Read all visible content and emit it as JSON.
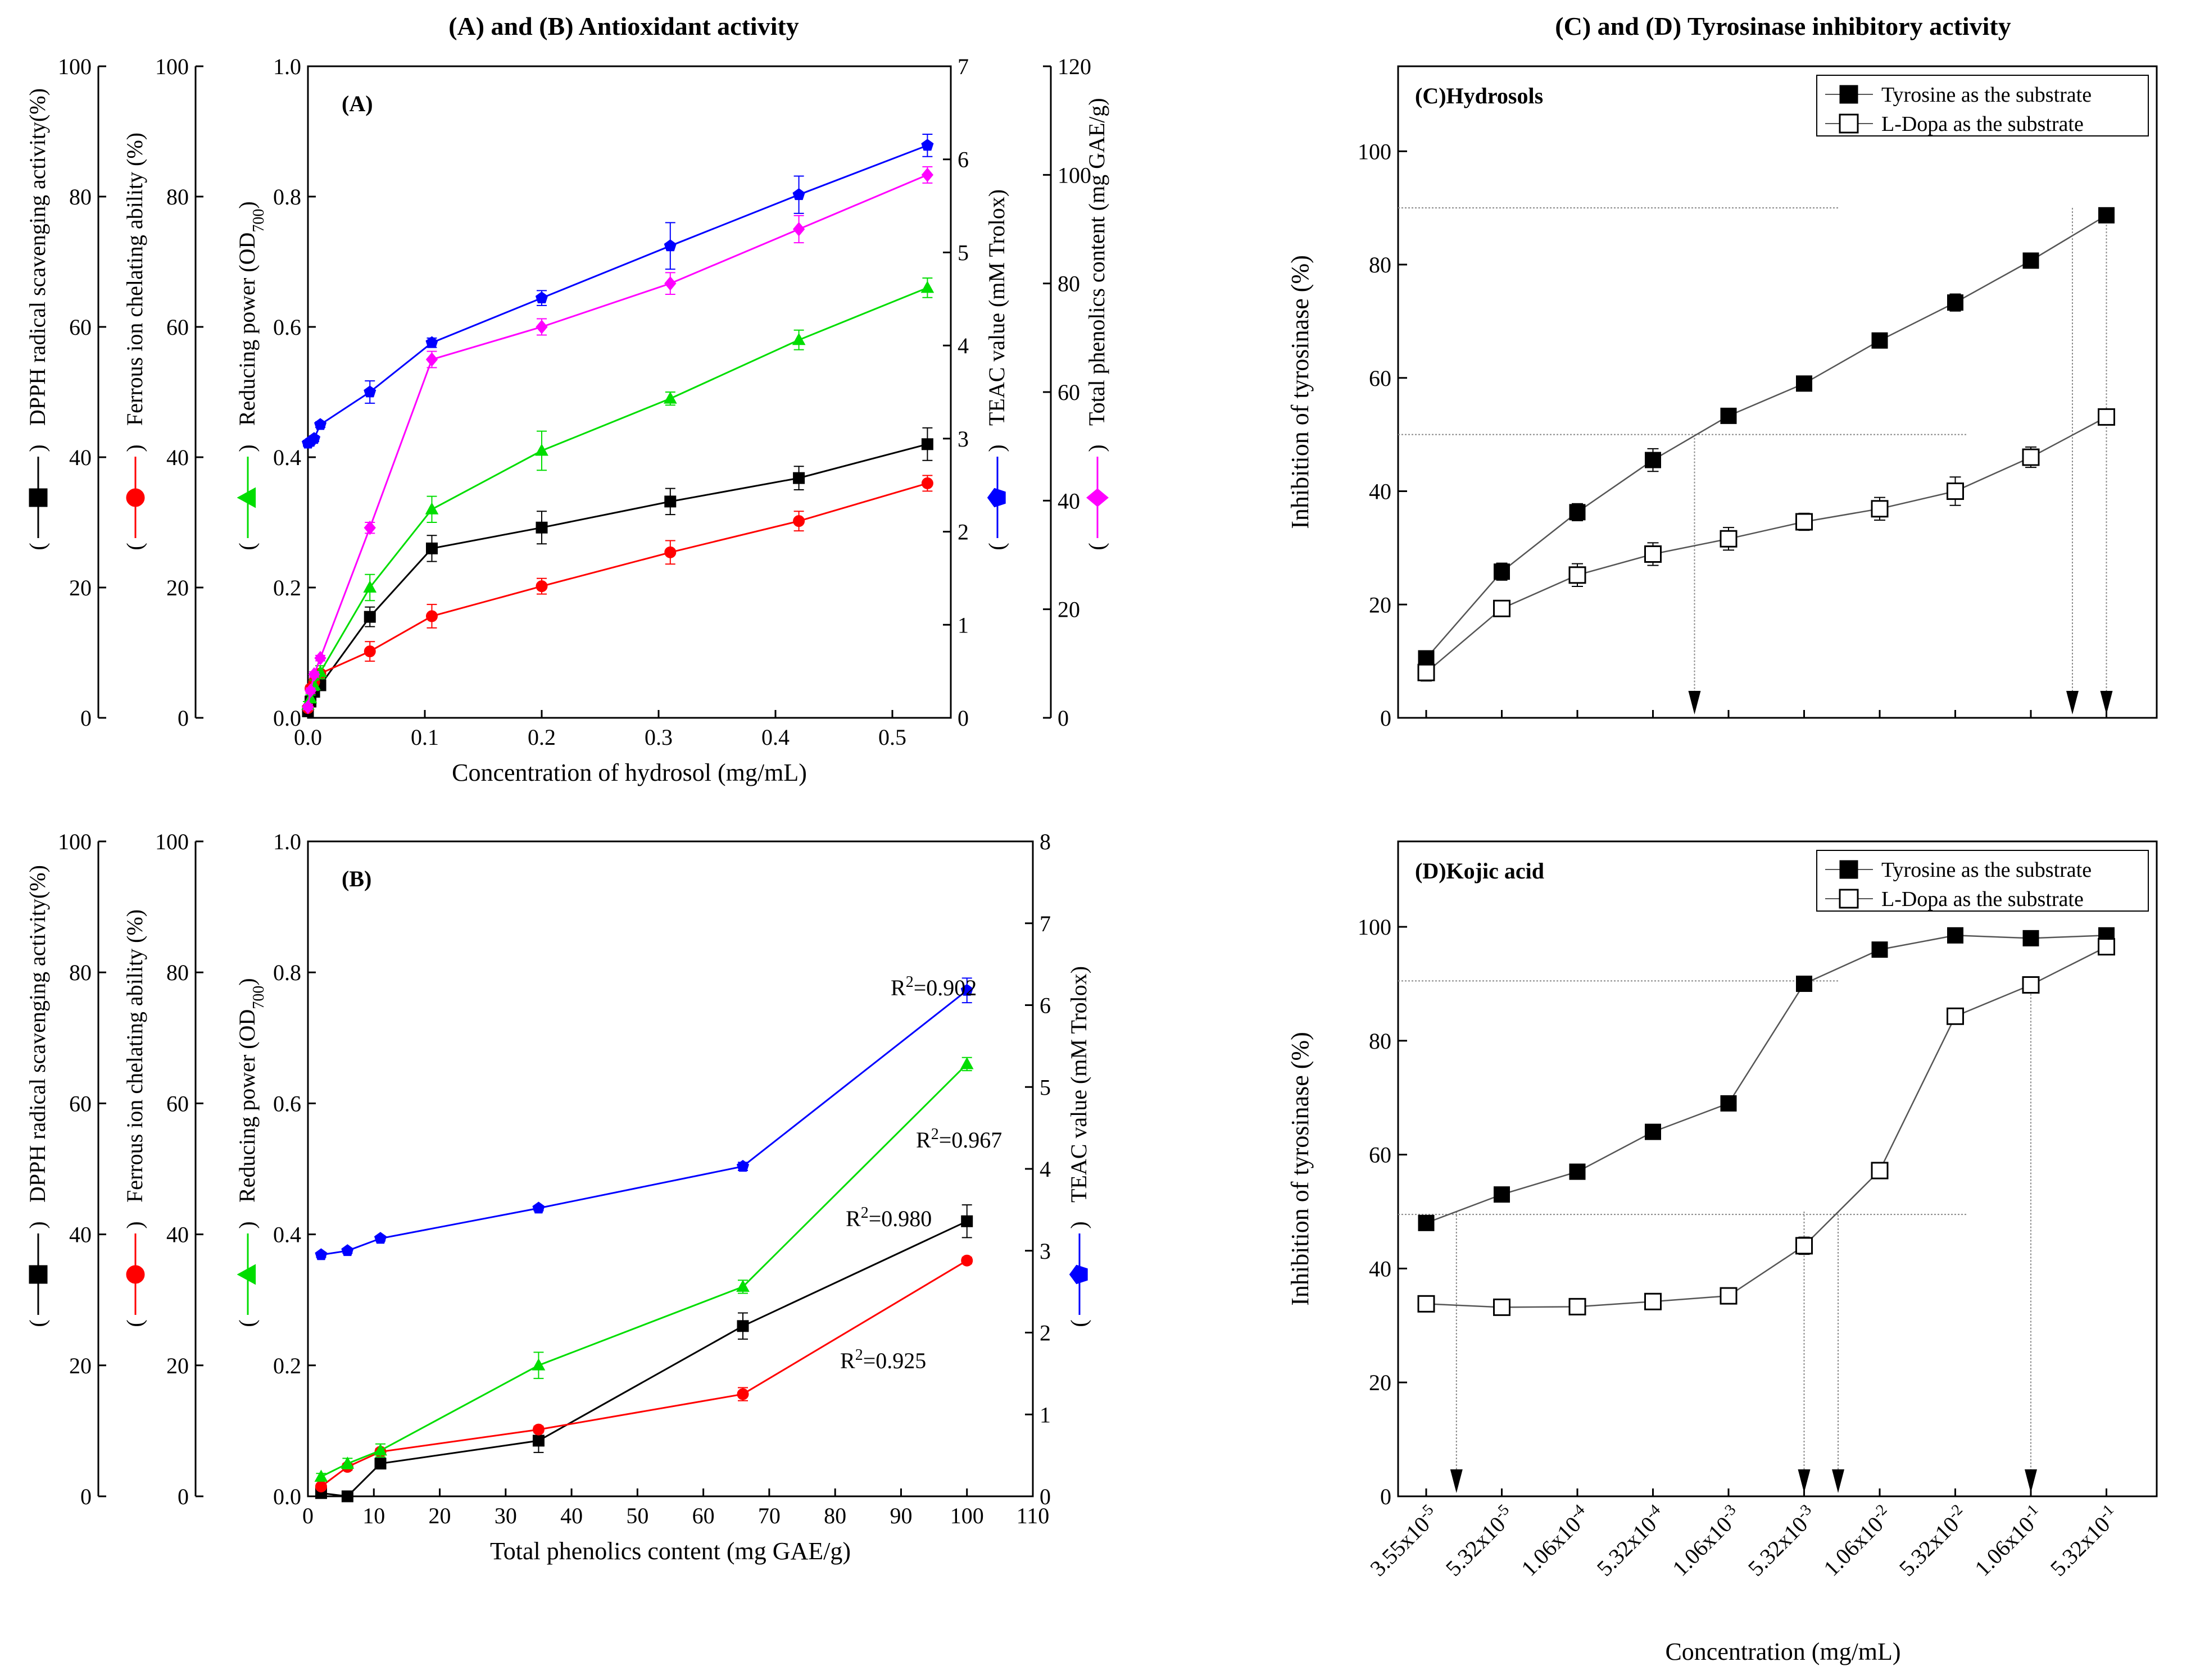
{
  "titles": {
    "left": "(A) and (B) Antioxidant activity",
    "right": "(C) and (D) Tyrosinase inhibitory activity"
  },
  "colors": {
    "dpph": "#000000",
    "ferrous": "#ff0000",
    "reducing": "#00dd00",
    "teac": "#0000ff",
    "phenolics": "#ff00ff",
    "tyrosine": "#000000",
    "ldopa": "#555555"
  },
  "chart_data": [
    {
      "id": "A",
      "type": "line",
      "panel_label": "(A)",
      "xlabel": "Concentration of hydrosol (mg/mL)",
      "xlim": [
        0,
        0.55
      ],
      "xticks": [
        0.0,
        0.1,
        0.2,
        0.3,
        0.4,
        0.5
      ],
      "xtick_labels": [
        "0.0",
        "0.1",
        "0.2",
        "0.3",
        "0.4",
        "0.5"
      ],
      "axes": [
        {
          "id": "dpph",
          "label": "DPPH radical scavenging activity(%)",
          "lim": [
            0,
            100
          ],
          "ticks": [
            "0",
            "20",
            "40",
            "60",
            "80",
            "100"
          ],
          "marker": "square"
        },
        {
          "id": "ferrous",
          "label": "Ferrous ion chelating ability (%)",
          "lim": [
            0,
            100
          ],
          "ticks": [
            "0",
            "20",
            "40",
            "60",
            "80",
            "100"
          ],
          "marker": "circle"
        },
        {
          "id": "reducing",
          "label": "Reducing power (OD",
          "label_sub": "700",
          "lim": [
            0,
            1.0
          ],
          "ticks": [
            "0.0",
            "0.2",
            "0.4",
            "0.6",
            "0.8",
            "1.0"
          ],
          "marker": "triangle"
        },
        {
          "id": "teac",
          "label": "TEAC value (mM Trolox)",
          "lim": [
            0,
            7
          ],
          "ticks": [
            "0",
            "1",
            "2",
            "3",
            "4",
            "5",
            "6",
            "7"
          ],
          "marker": "pentagon"
        },
        {
          "id": "phenolics",
          "label": "Total phenolics content (mg GAE/g)",
          "lim": [
            0,
            120
          ],
          "ticks": [
            "0",
            "20",
            "40",
            "60",
            "80",
            "100",
            "120"
          ],
          "marker": "diamond"
        }
      ],
      "series": [
        {
          "name": "DPPH radical scavenging activity",
          "axis": "dpph",
          "color": "#000000",
          "marker": "square",
          "x": [
            0.0,
            0.0022,
            0.0053,
            0.0106,
            0.053,
            0.106,
            0.2,
            0.31,
            0.42,
            0.53
          ],
          "y": [
            1.0,
            2.5,
            4.0,
            5.0,
            15.5,
            26.0,
            29.2,
            33.2,
            36.8,
            42.0
          ],
          "err": [
            0.3,
            0.5,
            0.5,
            0.8,
            1.5,
            2.0,
            2.5,
            2.0,
            1.8,
            2.5
          ]
        },
        {
          "name": "Ferrous ion chelating ability",
          "axis": "ferrous",
          "color": "#ff0000",
          "marker": "circle",
          "x": [
            0.0,
            0.0022,
            0.0053,
            0.0106,
            0.053,
            0.106,
            0.2,
            0.31,
            0.42,
            0.53
          ],
          "y": [
            1.5,
            4.5,
            5.5,
            6.8,
            10.2,
            15.6,
            20.2,
            25.4,
            30.2,
            36.0
          ],
          "err": [
            0.3,
            0.5,
            0.5,
            0.5,
            1.5,
            1.8,
            1.2,
            1.8,
            1.5,
            1.2
          ]
        },
        {
          "name": "Reducing power",
          "axis": "reducing",
          "color": "#00dd00",
          "marker": "triangle",
          "x": [
            0.0,
            0.0022,
            0.0053,
            0.0106,
            0.053,
            0.106,
            0.2,
            0.31,
            0.42,
            0.53
          ],
          "y": [
            0.02,
            0.03,
            0.05,
            0.07,
            0.2,
            0.32,
            0.41,
            0.49,
            0.58,
            0.66
          ],
          "err": [
            0.005,
            0.005,
            0.008,
            0.01,
            0.02,
            0.02,
            0.03,
            0.01,
            0.015,
            0.015
          ]
        },
        {
          "name": "TEAC value",
          "axis": "teac",
          "color": "#0000ff",
          "marker": "pentagon",
          "x": [
            0.0,
            0.0022,
            0.0053,
            0.0106,
            0.053,
            0.106,
            0.2,
            0.31,
            0.42,
            0.53
          ],
          "y": [
            2.95,
            2.97,
            3.0,
            3.15,
            3.5,
            4.03,
            4.51,
            5.07,
            5.62,
            6.15
          ],
          "err": [
            0.03,
            0.03,
            0.03,
            0.03,
            0.12,
            0.05,
            0.08,
            0.25,
            0.2,
            0.12
          ]
        },
        {
          "name": "Total phenolics content",
          "axis": "phenolics",
          "color": "#ff00ff",
          "marker": "diamond",
          "x": [
            0.0,
            0.0022,
            0.0053,
            0.0106,
            0.053,
            0.106,
            0.2,
            0.31,
            0.42,
            0.53
          ],
          "y": [
            2,
            5,
            8,
            11,
            35,
            66,
            72,
            80,
            90,
            100
          ],
          "err": [
            0.5,
            0.5,
            0.5,
            0.5,
            1.0,
            1.5,
            1.5,
            2.0,
            2.5,
            1.5
          ]
        }
      ]
    },
    {
      "id": "B",
      "type": "line",
      "panel_label": "(B)",
      "xlabel": "Total phenolics content (mg GAE/g)",
      "xlim": [
        0,
        110
      ],
      "xticks": [
        0,
        10,
        20,
        30,
        40,
        50,
        60,
        70,
        80,
        90,
        100,
        110
      ],
      "xtick_labels": [
        "0",
        "10",
        "20",
        "30",
        "40",
        "50",
        "60",
        "70",
        "80",
        "90",
        "100",
        "110"
      ],
      "axes": [
        {
          "id": "dpph",
          "label": "DPPH radical scavenging activity(%)",
          "lim": [
            0,
            100
          ],
          "ticks": [
            "0",
            "20",
            "40",
            "60",
            "80",
            "100"
          ],
          "marker": "square"
        },
        {
          "id": "ferrous",
          "label": "Ferrous ion chelating ability (%)",
          "lim": [
            0,
            100
          ],
          "ticks": [
            "0",
            "20",
            "40",
            "60",
            "80",
            "100"
          ],
          "marker": "circle"
        },
        {
          "id": "reducing",
          "label": "Reducing power (OD",
          "label_sub": "700",
          "lim": [
            0,
            1.0
          ],
          "ticks": [
            "0.0",
            "0.2",
            "0.4",
            "0.6",
            "0.8",
            "1.0"
          ],
          "marker": "triangle"
        },
        {
          "id": "teac",
          "label": "TEAC value (mM Trolox)",
          "lim": [
            0,
            8
          ],
          "ticks": [
            "0",
            "1",
            "2",
            "3",
            "4",
            "5",
            "6",
            "7",
            "8"
          ],
          "marker": "pentagon"
        }
      ],
      "series": [
        {
          "name": "DPPH radical scavenging activity",
          "axis": "dpph",
          "color": "#000000",
          "marker": "square",
          "x": [
            2,
            6,
            11,
            35,
            66,
            100
          ],
          "y": [
            0.5,
            0,
            5,
            8.5,
            26,
            42
          ],
          "err": [
            0.3,
            0.3,
            0.8,
            1.8,
            2.0,
            2.5
          ]
        },
        {
          "name": "Ferrous ion chelating ability",
          "axis": "ferrous",
          "color": "#ff0000",
          "marker": "circle",
          "x": [
            2,
            6,
            11,
            35,
            66,
            100
          ],
          "y": [
            1.5,
            4.5,
            6.8,
            10.2,
            15.6,
            36
          ],
          "err": [
            0.3,
            0.5,
            0.5,
            0.5,
            1.0,
            0.5
          ]
        },
        {
          "name": "Reducing power",
          "axis": "reducing",
          "color": "#00dd00",
          "marker": "triangle",
          "x": [
            2,
            6,
            11,
            35,
            66,
            100
          ],
          "y": [
            0.03,
            0.05,
            0.07,
            0.2,
            0.32,
            0.66
          ],
          "err": [
            0.005,
            0.008,
            0.01,
            0.02,
            0.01,
            0.01
          ]
        },
        {
          "name": "TEAC value",
          "axis": "teac",
          "color": "#0000ff",
          "marker": "pentagon",
          "x": [
            2,
            6,
            11,
            35,
            66,
            100
          ],
          "y": [
            2.95,
            3.0,
            3.15,
            3.52,
            4.03,
            6.18
          ],
          "err": [
            0.03,
            0.03,
            0.03,
            0.03,
            0.05,
            0.15
          ]
        }
      ],
      "annotations": [
        {
          "text": "R",
          "sup": "2",
          "value": "=0.902",
          "series": "TEAC value"
        },
        {
          "text": "R",
          "sup": "2",
          "value": "=0.967",
          "series": "Reducing power"
        },
        {
          "text": "R",
          "sup": "2",
          "value": "=0.980",
          "series": "DPPH radical scavenging activity"
        },
        {
          "text": "R",
          "sup": "2",
          "value": "=0.925",
          "series": "Ferrous ion chelating ability"
        }
      ]
    },
    {
      "id": "C",
      "type": "line",
      "panel_label": "(C)Hydrosols",
      "ylabel": "Inhibition of tyrosinase (%)",
      "ylim": [
        0,
        115
      ],
      "yticks": [
        0,
        20,
        40,
        60,
        80,
        100
      ],
      "ytick_labels": [
        "0",
        "20",
        "40",
        "60",
        "80",
        "100"
      ],
      "x_count": 10,
      "legend": [
        "Tyrosine as the substrate",
        "L-Dopa as the substrate"
      ],
      "legend_position": "top-right",
      "series": [
        {
          "name": "Tyrosine as the substrate",
          "fill": "filled",
          "y": [
            10.5,
            25.8,
            36.3,
            45.5,
            53.3,
            59.0,
            66.6,
            73.3,
            80.7,
            88.7
          ],
          "err": [
            1.0,
            1.5,
            1.5,
            2.0,
            1.0,
            1.0,
            1.0,
            1.5,
            1.0,
            1.0
          ]
        },
        {
          "name": "L-Dopa as the substrate",
          "fill": "open",
          "y": [
            8.0,
            19.3,
            25.2,
            28.9,
            31.6,
            34.6,
            36.9,
            40.0,
            46.0,
            53.1
          ],
          "err": [
            1.5,
            1.0,
            2.0,
            2.0,
            2.0,
            1.5,
            2.0,
            2.5,
            1.8,
            1.0
          ]
        }
      ],
      "guides": {
        "h": [
          90,
          50
        ],
        "arrows_at_index": [
          3.55,
          8.55,
          9
        ]
      }
    },
    {
      "id": "D",
      "type": "line",
      "panel_label": "(D)Kojic acid",
      "ylabel": "Inhibition of tyrosinase (%)",
      "xlabel": "Concentration (mg/mL)",
      "ylim": [
        0,
        115
      ],
      "yticks": [
        0,
        20,
        40,
        60,
        80,
        100
      ],
      "ytick_labels": [
        "0",
        "20",
        "40",
        "60",
        "80",
        "100"
      ],
      "categories": [
        {
          "mant": "3.55x10",
          "exp": "-5"
        },
        {
          "mant": "5.32x10",
          "exp": "-5"
        },
        {
          "mant": "1.06x10",
          "exp": "-4"
        },
        {
          "mant": "5.32x10",
          "exp": "-4"
        },
        {
          "mant": "1.06x10",
          "exp": "-3"
        },
        {
          "mant": "5.32x10",
          "exp": "-3"
        },
        {
          "mant": "1.06x10",
          "exp": "-2"
        },
        {
          "mant": "5.32x10",
          "exp": "-2"
        },
        {
          "mant": "1.06x10",
          "exp": "-1"
        },
        {
          "mant": "5.32x10",
          "exp": "-1"
        }
      ],
      "legend": [
        "Tyrosine as the substrate",
        "L-Dopa as the substrate"
      ],
      "legend_position": "top-right",
      "series": [
        {
          "name": "Tyrosine as the substrate",
          "fill": "filled",
          "y": [
            48.0,
            53.0,
            57.0,
            64.0,
            69.0,
            90.0,
            96.0,
            98.5,
            98.0,
            98.5
          ],
          "err": [
            1.0,
            1.0,
            1.0,
            1.0,
            1.0,
            1.0,
            0.8,
            0.8,
            0.8,
            0.8
          ]
        },
        {
          "name": "L-Dopa as the substrate",
          "fill": "open",
          "y": [
            33.8,
            33.2,
            33.3,
            34.2,
            35.2,
            44.0,
            57.2,
            84.3,
            89.8,
            96.5
          ],
          "err": [
            1.0,
            1.0,
            1.0,
            1.0,
            1.0,
            1.5,
            1.0,
            1.0,
            1.0,
            1.0
          ]
        }
      ],
      "guides": {
        "h": [
          90.5,
          49.5
        ],
        "arrows_at_index": [
          0.4,
          5.0,
          5.45,
          8.0
        ]
      }
    }
  ]
}
